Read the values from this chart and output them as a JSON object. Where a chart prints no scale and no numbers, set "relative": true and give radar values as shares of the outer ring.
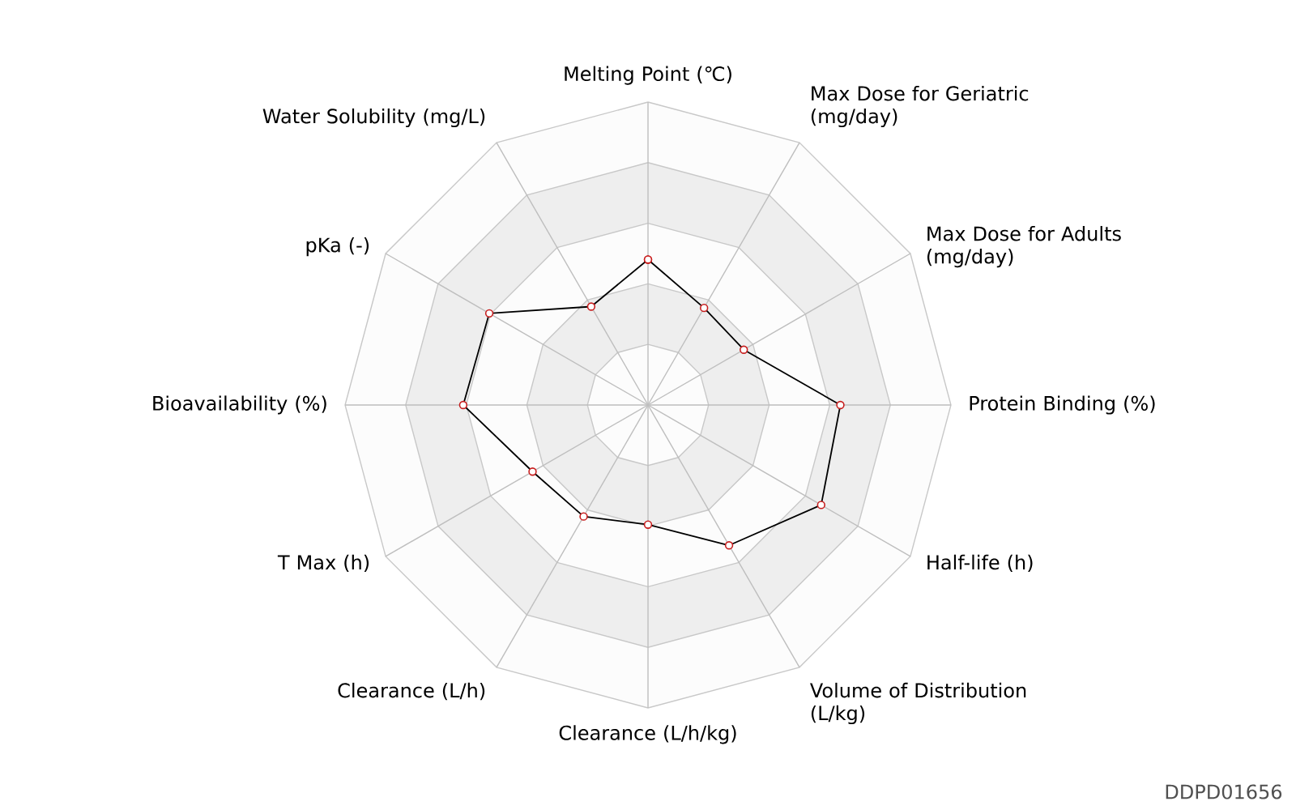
{
  "chart_data": {
    "type": "radar",
    "relative": true,
    "grid": true,
    "marker": "circle",
    "categories": [
      "Melting Point (℃)",
      "Max Dose for Geriatric (mg/day)",
      "Max Dose for Adults (mg/day)",
      "Protein Binding (%)",
      "Half-life (h)",
      "Volume of Distribution (L/kg)",
      "Clearance (L/h/kg)",
      "Clearance (L/h)",
      "T Max (h)",
      "Bioavailability (%)",
      "pKa (-)",
      "Water Solubility (mg/L)"
    ],
    "series": [
      {
        "color": "#000000",
        "values": [
          0.48,
          0.37,
          0.365,
          0.635,
          0.66,
          0.535,
          0.395,
          0.425,
          0.44,
          0.61,
          0.605,
          0.375
        ]
      }
    ],
    "annotations": [
      "DDPD01656"
    ]
  }
}
